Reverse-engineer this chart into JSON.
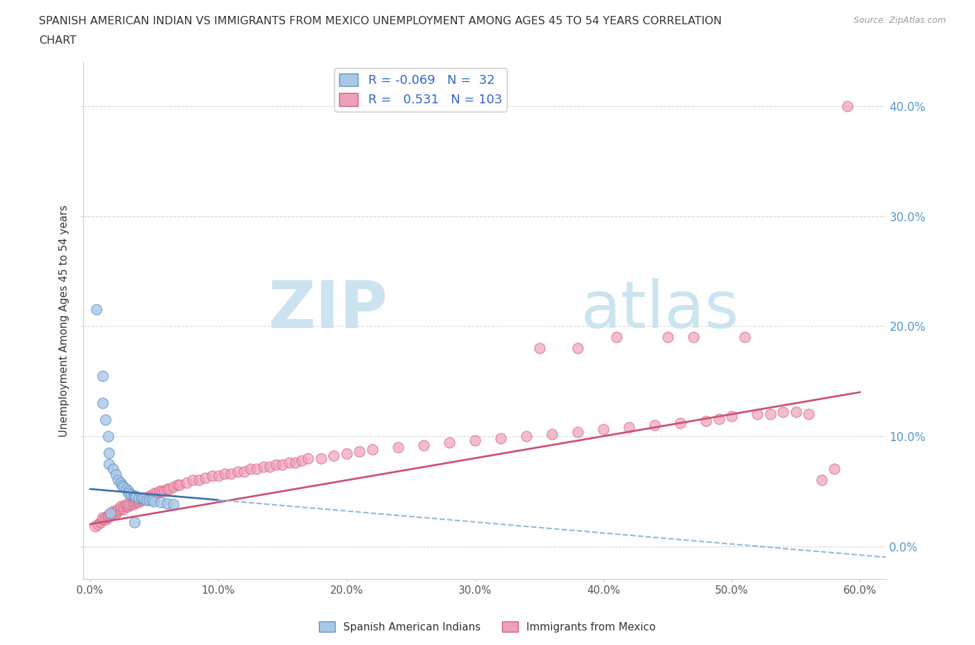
{
  "title_line1": "SPANISH AMERICAN INDIAN VS IMMIGRANTS FROM MEXICO UNEMPLOYMENT AMONG AGES 45 TO 54 YEARS CORRELATION",
  "title_line2": "CHART",
  "source": "Source: ZipAtlas.com",
  "ylabel": "Unemployment Among Ages 45 to 54 years",
  "xlim": [
    -0.005,
    0.62
  ],
  "ylim": [
    -0.03,
    0.44
  ],
  "yticks": [
    0.0,
    0.1,
    0.2,
    0.3,
    0.4
  ],
  "ytick_labels": [
    "0.0%",
    "10.0%",
    "20.0%",
    "30.0%",
    "40.0%"
  ],
  "xticks": [
    0.0,
    0.1,
    0.2,
    0.3,
    0.4,
    0.5,
    0.6
  ],
  "xtick_labels": [
    "0.0%",
    "10.0%",
    "20.0%",
    "30.0%",
    "40.0%",
    "50.0%",
    "60.0%"
  ],
  "blue_color": "#a8c8e8",
  "pink_color": "#f0a0b8",
  "blue_edge_color": "#6090c0",
  "pink_edge_color": "#d06080",
  "blue_line_color": "#4070b0",
  "pink_line_color": "#d05070",
  "blue_dash_color": "#90b8d8",
  "blue_R": -0.069,
  "blue_N": 32,
  "pink_R": 0.531,
  "pink_N": 103,
  "watermark_color": "#cce4f0",
  "grid_color": "#cccccc",
  "right_tick_color": "#5599cc",
  "blue_points": [
    [
      0.005,
      0.215
    ],
    [
      0.01,
      0.155
    ],
    [
      0.01,
      0.13
    ],
    [
      0.012,
      0.115
    ],
    [
      0.014,
      0.1
    ],
    [
      0.015,
      0.085
    ],
    [
      0.015,
      0.075
    ],
    [
      0.018,
      0.07
    ],
    [
      0.02,
      0.065
    ],
    [
      0.022,
      0.06
    ],
    [
      0.024,
      0.058
    ],
    [
      0.025,
      0.055
    ],
    [
      0.026,
      0.054
    ],
    [
      0.028,
      0.052
    ],
    [
      0.03,
      0.05
    ],
    [
      0.03,
      0.048
    ],
    [
      0.032,
      0.047
    ],
    [
      0.034,
      0.046
    ],
    [
      0.035,
      0.046
    ],
    [
      0.036,
      0.045
    ],
    [
      0.038,
      0.044
    ],
    [
      0.04,
      0.044
    ],
    [
      0.042,
      0.043
    ],
    [
      0.044,
      0.042
    ],
    [
      0.046,
      0.042
    ],
    [
      0.048,
      0.042
    ],
    [
      0.05,
      0.041
    ],
    [
      0.055,
      0.04
    ],
    [
      0.06,
      0.039
    ],
    [
      0.065,
      0.038
    ],
    [
      0.016,
      0.03
    ],
    [
      0.035,
      0.022
    ]
  ],
  "pink_points": [
    [
      0.004,
      0.018
    ],
    [
      0.006,
      0.02
    ],
    [
      0.008,
      0.022
    ],
    [
      0.01,
      0.024
    ],
    [
      0.01,
      0.026
    ],
    [
      0.012,
      0.024
    ],
    [
      0.012,
      0.026
    ],
    [
      0.014,
      0.026
    ],
    [
      0.014,
      0.028
    ],
    [
      0.016,
      0.028
    ],
    [
      0.016,
      0.03
    ],
    [
      0.018,
      0.03
    ],
    [
      0.018,
      0.032
    ],
    [
      0.02,
      0.03
    ],
    [
      0.02,
      0.032
    ],
    [
      0.022,
      0.032
    ],
    [
      0.022,
      0.034
    ],
    [
      0.024,
      0.034
    ],
    [
      0.024,
      0.036
    ],
    [
      0.026,
      0.034
    ],
    [
      0.026,
      0.036
    ],
    [
      0.028,
      0.036
    ],
    [
      0.028,
      0.038
    ],
    [
      0.03,
      0.036
    ],
    [
      0.03,
      0.038
    ],
    [
      0.032,
      0.038
    ],
    [
      0.034,
      0.038
    ],
    [
      0.034,
      0.04
    ],
    [
      0.036,
      0.04
    ],
    [
      0.036,
      0.042
    ],
    [
      0.038,
      0.04
    ],
    [
      0.038,
      0.042
    ],
    [
      0.04,
      0.042
    ],
    [
      0.04,
      0.044
    ],
    [
      0.042,
      0.044
    ],
    [
      0.044,
      0.044
    ],
    [
      0.046,
      0.046
    ],
    [
      0.048,
      0.046
    ],
    [
      0.05,
      0.046
    ],
    [
      0.05,
      0.048
    ],
    [
      0.052,
      0.048
    ],
    [
      0.054,
      0.05
    ],
    [
      0.056,
      0.05
    ],
    [
      0.058,
      0.05
    ],
    [
      0.06,
      0.052
    ],
    [
      0.062,
      0.052
    ],
    [
      0.065,
      0.054
    ],
    [
      0.068,
      0.056
    ],
    [
      0.07,
      0.056
    ],
    [
      0.075,
      0.058
    ],
    [
      0.08,
      0.06
    ],
    [
      0.085,
      0.06
    ],
    [
      0.09,
      0.062
    ],
    [
      0.095,
      0.064
    ],
    [
      0.1,
      0.064
    ],
    [
      0.105,
      0.066
    ],
    [
      0.11,
      0.066
    ],
    [
      0.115,
      0.068
    ],
    [
      0.12,
      0.068
    ],
    [
      0.125,
      0.07
    ],
    [
      0.13,
      0.07
    ],
    [
      0.135,
      0.072
    ],
    [
      0.14,
      0.072
    ],
    [
      0.145,
      0.074
    ],
    [
      0.15,
      0.074
    ],
    [
      0.155,
      0.076
    ],
    [
      0.16,
      0.076
    ],
    [
      0.165,
      0.078
    ],
    [
      0.17,
      0.08
    ],
    [
      0.18,
      0.08
    ],
    [
      0.19,
      0.082
    ],
    [
      0.2,
      0.084
    ],
    [
      0.21,
      0.086
    ],
    [
      0.22,
      0.088
    ],
    [
      0.24,
      0.09
    ],
    [
      0.26,
      0.092
    ],
    [
      0.28,
      0.094
    ],
    [
      0.3,
      0.096
    ],
    [
      0.32,
      0.098
    ],
    [
      0.34,
      0.1
    ],
    [
      0.35,
      0.18
    ],
    [
      0.36,
      0.102
    ],
    [
      0.38,
      0.104
    ],
    [
      0.38,
      0.18
    ],
    [
      0.4,
      0.106
    ],
    [
      0.41,
      0.19
    ],
    [
      0.42,
      0.108
    ],
    [
      0.44,
      0.11
    ],
    [
      0.45,
      0.19
    ],
    [
      0.46,
      0.112
    ],
    [
      0.47,
      0.19
    ],
    [
      0.48,
      0.114
    ],
    [
      0.49,
      0.116
    ],
    [
      0.5,
      0.118
    ],
    [
      0.51,
      0.19
    ],
    [
      0.52,
      0.12
    ],
    [
      0.53,
      0.12
    ],
    [
      0.54,
      0.122
    ],
    [
      0.55,
      0.122
    ],
    [
      0.56,
      0.12
    ],
    [
      0.57,
      0.06
    ],
    [
      0.58,
      0.07
    ],
    [
      0.59,
      0.4
    ]
  ]
}
